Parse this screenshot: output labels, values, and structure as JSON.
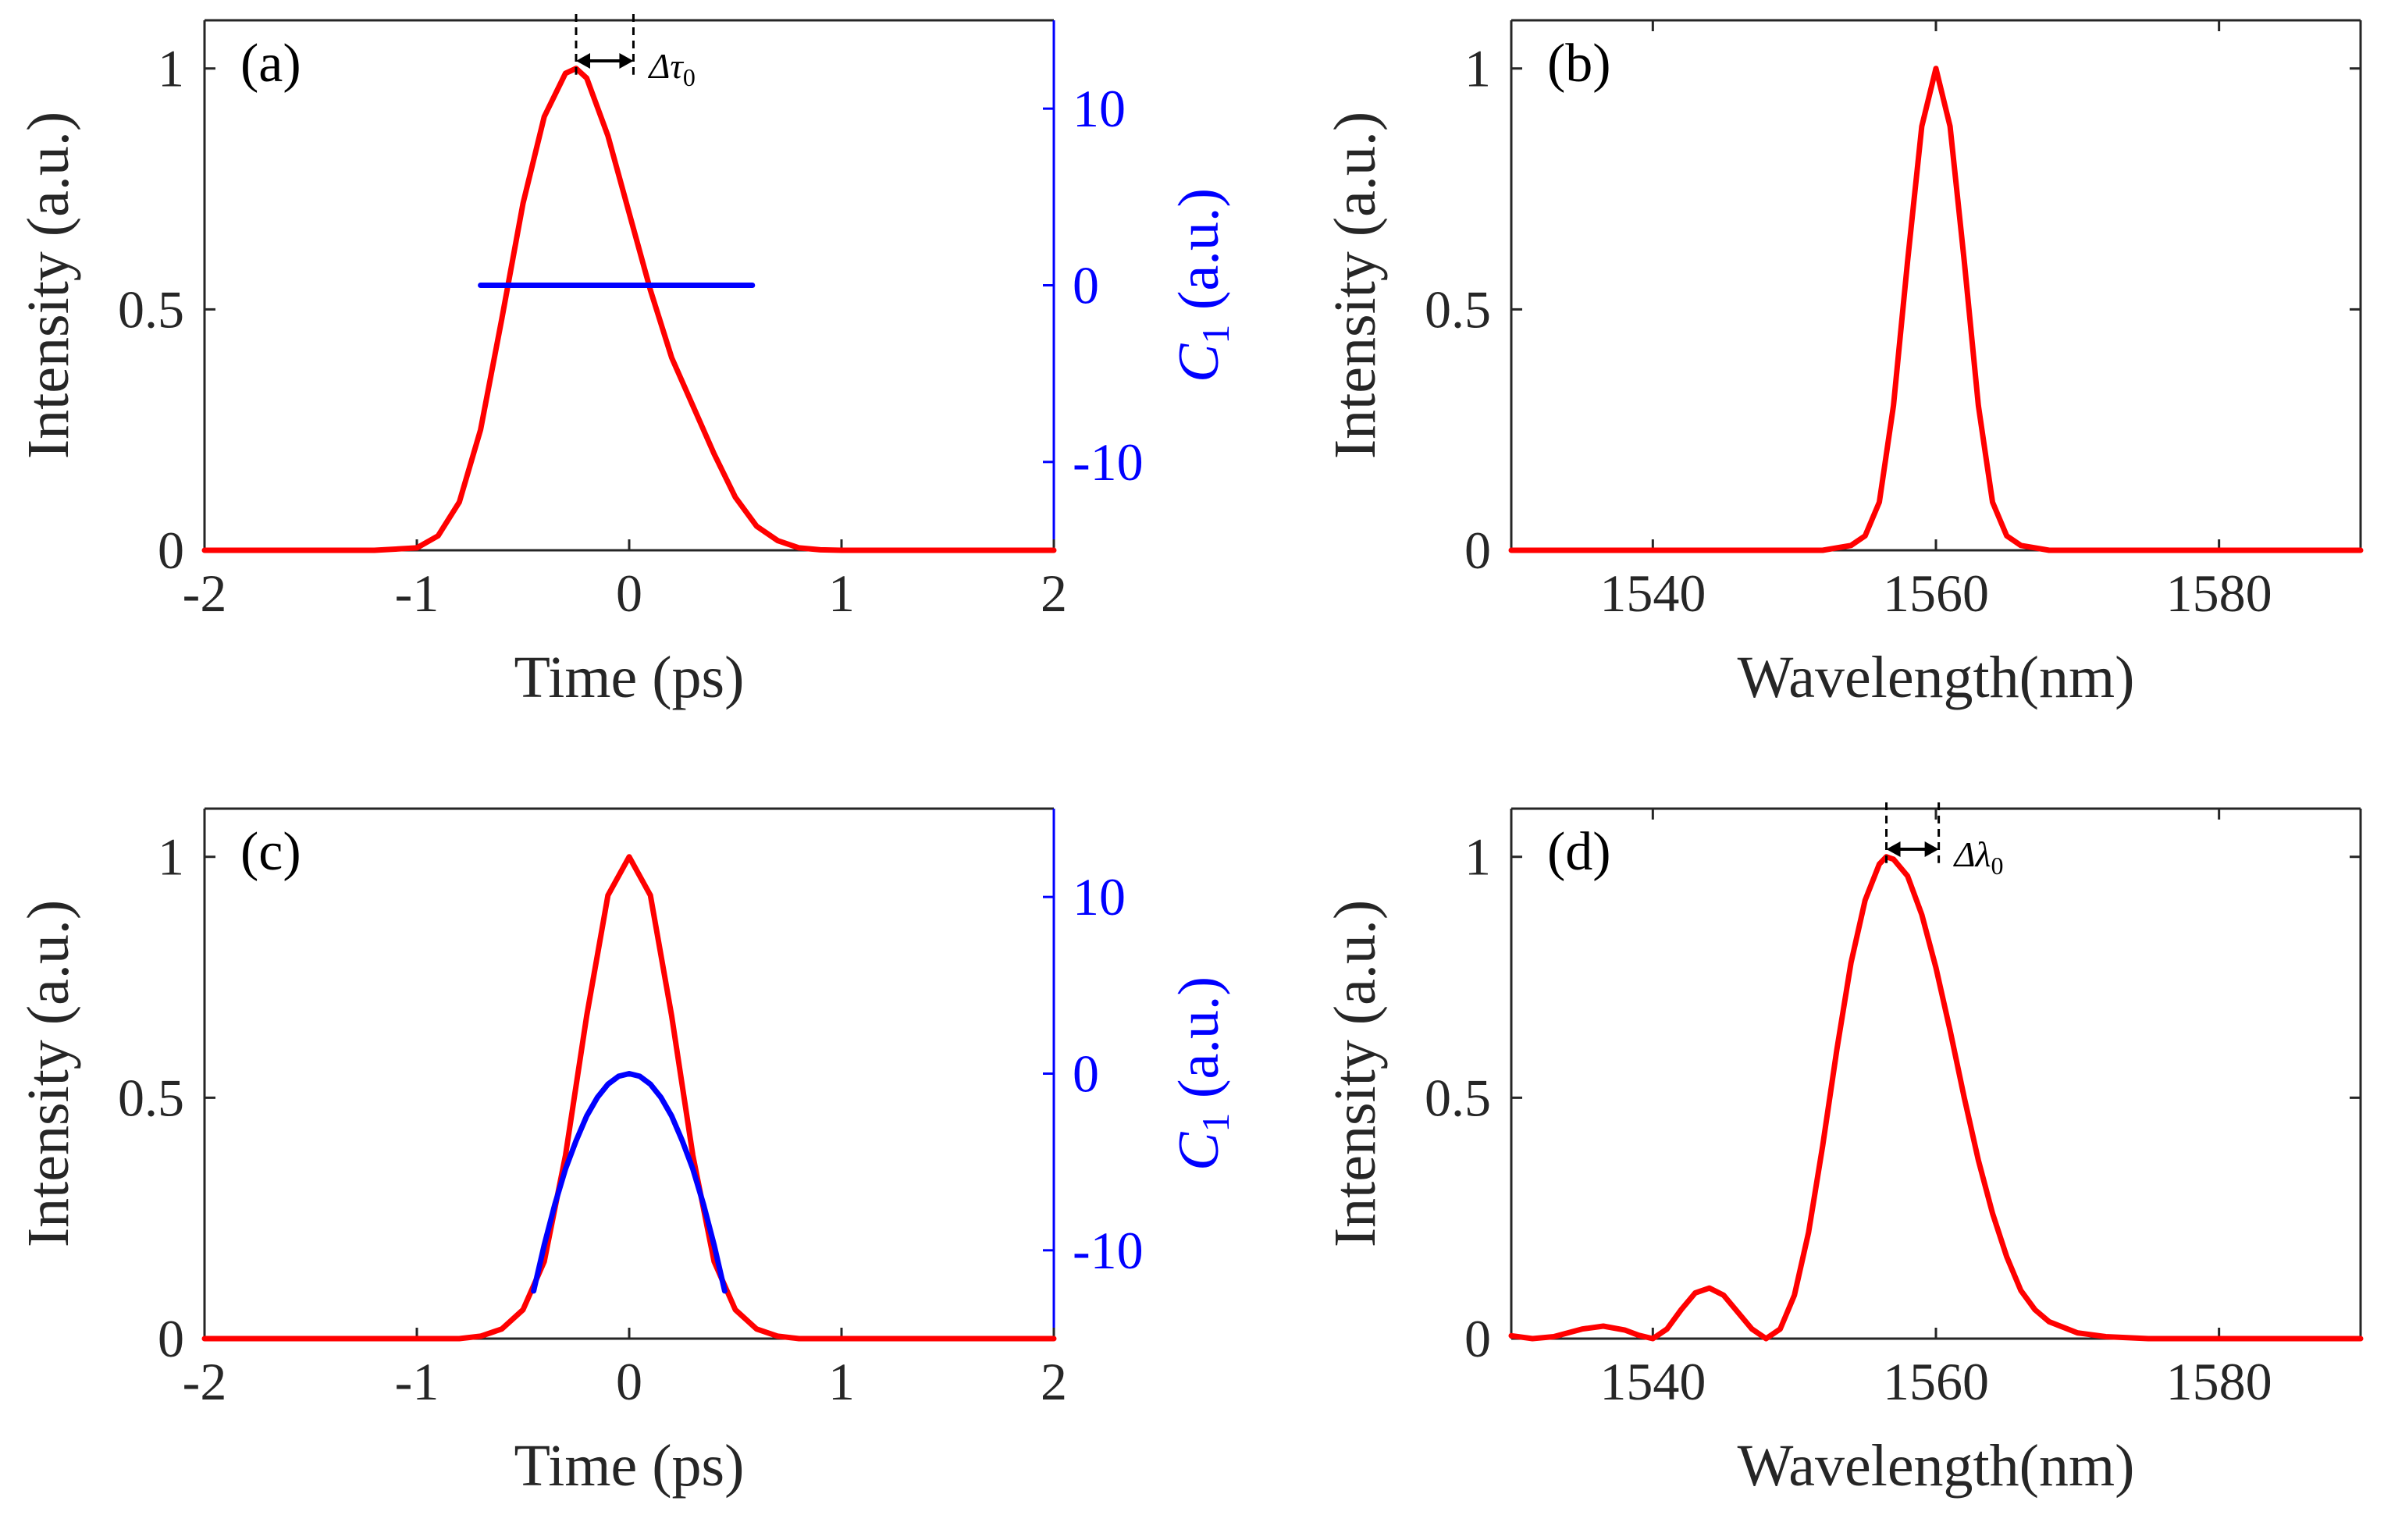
{
  "colors": {
    "intensity": "#ff0000",
    "chirp": "#0000ff",
    "axis": "#262626",
    "annotation": "#000000"
  },
  "chart_data": [
    {
      "id": "a",
      "type": "line",
      "panel_label": "(a)",
      "xlabel": "Time (ps)",
      "ylabel": "Intensity (a.u.)",
      "xlim": [
        -2,
        2
      ],
      "ylim": [
        0,
        1.1
      ],
      "xticks": [
        -2,
        -1,
        0,
        1,
        2
      ],
      "xtick_labels": [
        "-2",
        "-1",
        "0",
        "1",
        "2"
      ],
      "yticks": [
        0,
        0.5,
        1
      ],
      "ytick_labels": [
        "0",
        "0.5",
        "1"
      ],
      "y2": {
        "label_prefix": "C",
        "label_sub": "1",
        "label_suffix": " (a.u.)",
        "lim": [
          -15,
          15
        ],
        "ticks": [
          10,
          0,
          -10
        ],
        "tick_labels": [
          "10",
          "0",
          "-10"
        ]
      },
      "annotation": {
        "symbol": "Δτ",
        "sub": "0",
        "from_x": -0.25,
        "to_x": 0.02
      },
      "series": [
        {
          "axis": "left",
          "color": "#ff0000",
          "x": [
            -2,
            -1.2,
            -1.0,
            -0.9,
            -0.8,
            -0.7,
            -0.6,
            -0.5,
            -0.4,
            -0.3,
            -0.25,
            -0.2,
            -0.1,
            0,
            0.1,
            0.2,
            0.3,
            0.4,
            0.5,
            0.6,
            0.7,
            0.8,
            0.9,
            1.0,
            1.2,
            2
          ],
          "y": [
            0,
            0,
            0.005,
            0.03,
            0.1,
            0.25,
            0.48,
            0.72,
            0.9,
            0.99,
            1.0,
            0.98,
            0.86,
            0.7,
            0.54,
            0.4,
            0.3,
            0.2,
            0.11,
            0.05,
            0.02,
            0.005,
            0.001,
            0,
            0,
            0
          ]
        },
        {
          "axis": "right",
          "color": "#0000ff",
          "x": [
            -0.7,
            0.58
          ],
          "y": [
            0,
            0
          ]
        }
      ]
    },
    {
      "id": "b",
      "type": "line",
      "panel_label": "(b)",
      "xlabel": "Wavelength(nm)",
      "ylabel": "Intensity (a.u.)",
      "xlim": [
        1530,
        1590
      ],
      "ylim": [
        0,
        1.1
      ],
      "xticks": [
        1540,
        1560,
        1580
      ],
      "xtick_labels": [
        "1540",
        "1560",
        "1580"
      ],
      "yticks": [
        0,
        0.5,
        1
      ],
      "ytick_labels": [
        "0",
        "0.5",
        "1"
      ],
      "series": [
        {
          "axis": "left",
          "color": "#ff0000",
          "x": [
            1530,
            1552,
            1554,
            1555,
            1556,
            1557,
            1558,
            1559,
            1560,
            1561,
            1562,
            1563,
            1564,
            1565,
            1566,
            1568,
            1590
          ],
          "y": [
            0,
            0,
            0.01,
            0.03,
            0.1,
            0.3,
            0.6,
            0.88,
            1.0,
            0.88,
            0.6,
            0.3,
            0.1,
            0.03,
            0.01,
            0,
            0
          ]
        }
      ]
    },
    {
      "id": "c",
      "type": "line",
      "panel_label": "(c)",
      "xlabel": "Time (ps)",
      "ylabel": "Intensity (a.u.)",
      "xlim": [
        -2,
        2
      ],
      "ylim": [
        0,
        1.1
      ],
      "xticks": [
        -2,
        -1,
        0,
        1,
        2
      ],
      "xtick_labels": [
        "-2",
        "-1",
        "0",
        "1",
        "2"
      ],
      "yticks": [
        0,
        0.5,
        1
      ],
      "ytick_labels": [
        "0",
        "0.5",
        "1"
      ],
      "y2": {
        "label_prefix": "C",
        "label_sub": "1",
        "label_suffix": " (a.u.)",
        "lim": [
          -15,
          15
        ],
        "ticks": [
          10,
          0,
          -10
        ],
        "tick_labels": [
          "10",
          "0",
          "-10"
        ]
      },
      "series": [
        {
          "axis": "left",
          "color": "#ff0000",
          "x": [
            -2,
            -0.8,
            -0.7,
            -0.6,
            -0.5,
            -0.4,
            -0.3,
            -0.2,
            -0.1,
            0,
            0.1,
            0.2,
            0.3,
            0.4,
            0.5,
            0.6,
            0.7,
            0.8,
            2
          ],
          "y": [
            0,
            0,
            0.005,
            0.02,
            0.06,
            0.16,
            0.38,
            0.67,
            0.92,
            1.0,
            0.92,
            0.67,
            0.38,
            0.16,
            0.06,
            0.02,
            0.005,
            0,
            0
          ]
        },
        {
          "axis": "right",
          "color": "#0000ff",
          "x": [
            -0.45,
            -0.4,
            -0.35,
            -0.3,
            -0.25,
            -0.2,
            -0.15,
            -0.1,
            -0.05,
            0,
            0.05,
            0.1,
            0.15,
            0.2,
            0.25,
            0.3,
            0.35,
            0.4,
            0.45
          ],
          "y": [
            -12.3,
            -9.7,
            -7.4,
            -5.4,
            -3.8,
            -2.4,
            -1.35,
            -0.6,
            -0.15,
            0,
            -0.15,
            -0.6,
            -1.35,
            -2.4,
            -3.8,
            -5.4,
            -7.4,
            -9.7,
            -12.3
          ]
        }
      ]
    },
    {
      "id": "d",
      "type": "line",
      "panel_label": "(d)",
      "xlabel": "Wavelength(nm)",
      "ylabel": "Intensity (a.u.)",
      "xlim": [
        1530,
        1590
      ],
      "ylim": [
        0,
        1.1
      ],
      "xticks": [
        1540,
        1560,
        1580
      ],
      "xtick_labels": [
        "1540",
        "1560",
        "1580"
      ],
      "yticks": [
        0,
        0.5,
        1
      ],
      "ytick_labels": [
        "0",
        "0.5",
        "1"
      ],
      "annotation": {
        "symbol": "Δλ",
        "sub": "0",
        "from_x": 1556.5,
        "to_x": 1560.2
      },
      "series": [
        {
          "axis": "left",
          "color": "#ff0000",
          "x": [
            1530,
            1531.5,
            1533,
            1535,
            1536.5,
            1538,
            1539,
            1540,
            1541,
            1542,
            1543,
            1544,
            1545,
            1546,
            1547,
            1548,
            1549,
            1550,
            1551,
            1552,
            1553,
            1554,
            1555,
            1556,
            1556.5,
            1557,
            1558,
            1559,
            1560,
            1561,
            1562,
            1563,
            1564,
            1565,
            1566,
            1567,
            1568,
            1570,
            1572,
            1575,
            1590
          ],
          "y": [
            0.006,
            0,
            0.004,
            0.02,
            0.026,
            0.018,
            0.007,
            0,
            0.02,
            0.06,
            0.095,
            0.105,
            0.09,
            0.055,
            0.02,
            0,
            0.02,
            0.09,
            0.22,
            0.4,
            0.6,
            0.78,
            0.91,
            0.985,
            1.0,
            0.995,
            0.96,
            0.88,
            0.77,
            0.64,
            0.5,
            0.37,
            0.26,
            0.17,
            0.1,
            0.06,
            0.035,
            0.012,
            0.004,
            0,
            0
          ]
        }
      ]
    }
  ]
}
